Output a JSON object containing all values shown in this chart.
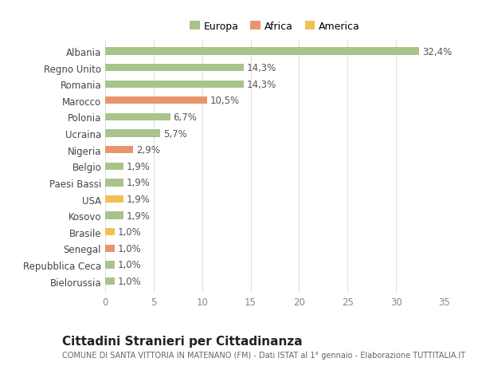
{
  "categories": [
    "Bielorussia",
    "Repubblica Ceca",
    "Senegal",
    "Brasile",
    "Kosovo",
    "USA",
    "Paesi Bassi",
    "Belgio",
    "Nigeria",
    "Ucraina",
    "Polonia",
    "Marocco",
    "Romania",
    "Regno Unito",
    "Albania"
  ],
  "values": [
    1.0,
    1.0,
    1.0,
    1.0,
    1.9,
    1.9,
    1.9,
    1.9,
    2.9,
    5.7,
    6.7,
    10.5,
    14.3,
    14.3,
    32.4
  ],
  "labels": [
    "1,0%",
    "1,0%",
    "1,0%",
    "1,0%",
    "1,9%",
    "1,9%",
    "1,9%",
    "1,9%",
    "2,9%",
    "5,7%",
    "6,7%",
    "10,5%",
    "14,3%",
    "14,3%",
    "32,4%"
  ],
  "colors": [
    "#a8c48a",
    "#a8c48a",
    "#e8956d",
    "#f0c050",
    "#a8c48a",
    "#f0c050",
    "#a8c48a",
    "#a8c48a",
    "#e8956d",
    "#a8c48a",
    "#a8c48a",
    "#e8956d",
    "#a8c48a",
    "#a8c48a",
    "#a8c48a"
  ],
  "legend_labels": [
    "Europa",
    "Africa",
    "America"
  ],
  "legend_colors": [
    "#a8c48a",
    "#e8956d",
    "#f0c050"
  ],
  "title": "Cittadini Stranieri per Cittadinanza",
  "subtitle": "COMUNE DI SANTA VITTORIA IN MATENANO (FM) - Dati ISTAT al 1° gennaio - Elaborazione TUTTITALIA.IT",
  "xlim": [
    0,
    35
  ],
  "xticks": [
    0,
    5,
    10,
    15,
    20,
    25,
    30,
    35
  ],
  "bg_color": "#ffffff",
  "grid_color": "#e0e0e0",
  "bar_height": 0.45,
  "label_fontsize": 8.5,
  "tick_fontsize": 8.5,
  "title_fontsize": 11,
  "subtitle_fontsize": 7.0
}
